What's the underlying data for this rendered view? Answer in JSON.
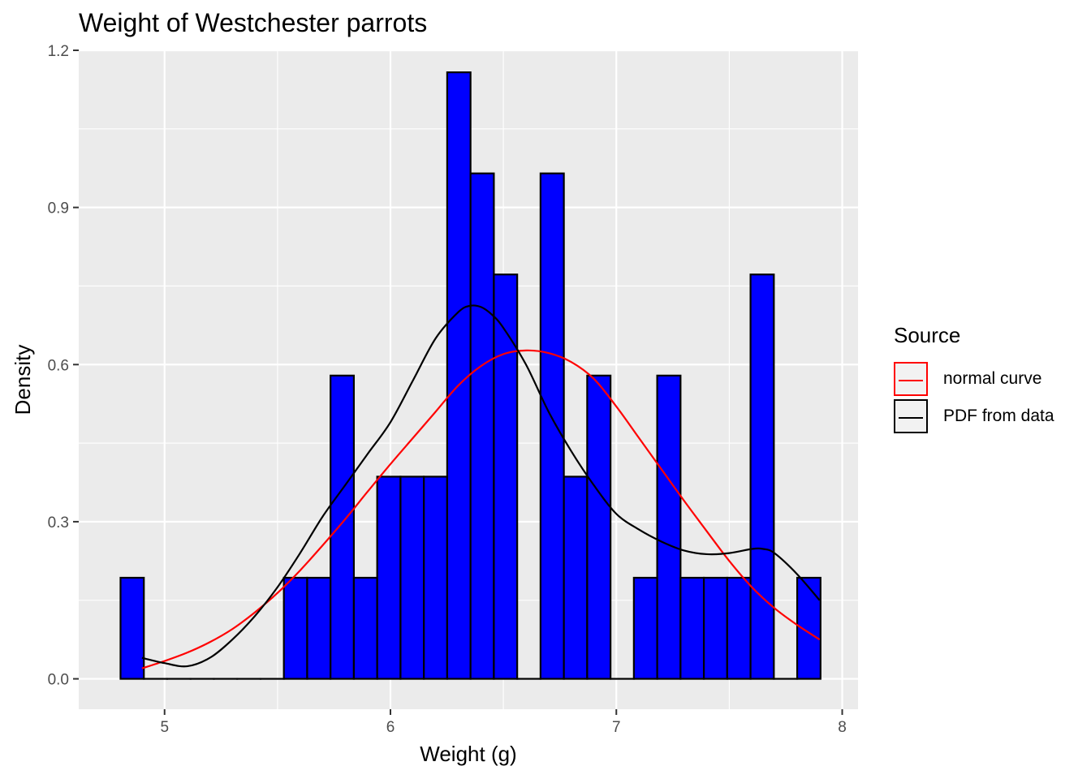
{
  "chart_data": {
    "type": "histogram",
    "title": "Weight of Westchester parrots",
    "xlabel": "Weight (g)",
    "ylabel": "Density",
    "xlim": [
      4.62,
      8.07
    ],
    "ylim": [
      -0.058,
      1.2
    ],
    "x_ticks": [
      5,
      6,
      7,
      8
    ],
    "y_ticks": [
      0.0,
      0.3,
      0.6,
      0.9,
      1.2
    ],
    "y_tick_labels": [
      "0.0",
      "0.3",
      "0.6",
      "0.9",
      "1.2"
    ],
    "grid": true,
    "bins": {
      "start": 4.805,
      "width": 0.1033,
      "fill": "#0000ff",
      "outline": "#000000",
      "density": [
        0.193,
        0,
        0,
        0,
        0,
        0,
        0,
        0.193,
        0.193,
        0.579,
        0.193,
        0.386,
        0.386,
        0.386,
        1.158,
        0.965,
        0.772,
        0,
        0.965,
        0.386,
        0.579,
        0,
        0.193,
        0.579,
        0.193,
        0.193,
        0.193,
        0.772,
        0,
        0.193
      ]
    },
    "series": [
      {
        "name": "normal curve",
        "color": "#ff0000",
        "x": [
          4.9,
          5.0,
          5.1,
          5.2,
          5.3,
          5.4,
          5.5,
          5.6,
          5.7,
          5.8,
          5.9,
          6.0,
          6.1,
          6.2,
          6.3,
          6.4,
          6.5,
          6.6,
          6.7,
          6.8,
          6.9,
          7.0,
          7.1,
          7.2,
          7.3,
          7.4,
          7.5,
          7.6,
          7.7,
          7.8,
          7.9
        ],
        "values": [
          0.02,
          0.034,
          0.05,
          0.07,
          0.095,
          0.127,
          0.164,
          0.207,
          0.255,
          0.305,
          0.358,
          0.41,
          0.46,
          0.51,
          0.56,
          0.597,
          0.62,
          0.627,
          0.622,
          0.605,
          0.573,
          0.52,
          0.46,
          0.4,
          0.34,
          0.282,
          0.225,
          0.175,
          0.135,
          0.103,
          0.075
        ]
      },
      {
        "name": "PDF from data",
        "color": "#000000",
        "x": [
          4.9,
          5.0,
          5.1,
          5.2,
          5.3,
          5.4,
          5.5,
          5.6,
          5.7,
          5.8,
          5.9,
          6.0,
          6.1,
          6.2,
          6.3,
          6.35,
          6.4,
          6.45,
          6.5,
          6.6,
          6.7,
          6.8,
          6.9,
          7.0,
          7.1,
          7.2,
          7.3,
          7.4,
          7.5,
          7.6,
          7.65,
          7.7,
          7.8,
          7.9
        ],
        "values": [
          0.04,
          0.03,
          0.024,
          0.04,
          0.075,
          0.12,
          0.175,
          0.24,
          0.31,
          0.37,
          0.43,
          0.49,
          0.57,
          0.65,
          0.7,
          0.712,
          0.71,
          0.695,
          0.67,
          0.6,
          0.51,
          0.435,
          0.37,
          0.315,
          0.285,
          0.262,
          0.245,
          0.238,
          0.24,
          0.248,
          0.248,
          0.24,
          0.2,
          0.15
        ]
      }
    ],
    "legend": {
      "title": "Source",
      "position": "right",
      "items": [
        {
          "label": "normal curve",
          "color": "#ff0000"
        },
        {
          "label": "PDF from data",
          "color": "#000000"
        }
      ]
    },
    "colors": {
      "panel_background": "#ebebeb",
      "gridline": "#ffffff",
      "tick_text": "#4d4d4d",
      "legend_key_background": "#f2f2f2"
    }
  }
}
